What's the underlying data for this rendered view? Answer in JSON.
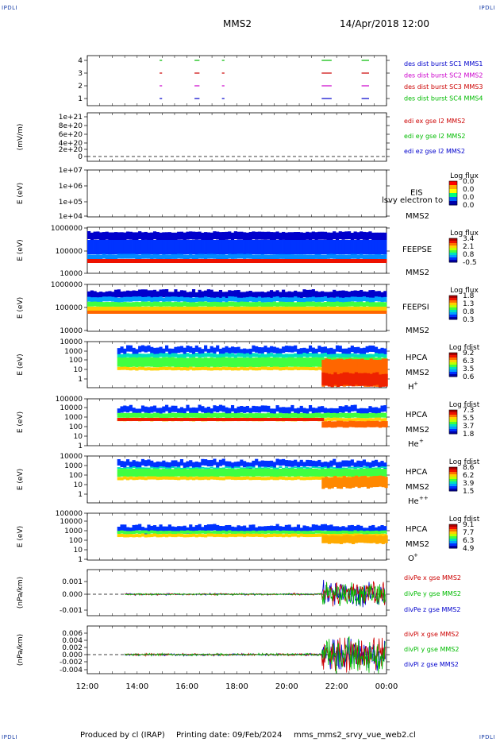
{
  "corners": {
    "tl": "IPDLI",
    "tr": "IPDLI",
    "bl": "IPDLI",
    "br": "IPDLI"
  },
  "header": {
    "spacecraft": "MMS2",
    "date": "14/Apr/2018 12:00"
  },
  "footer": {
    "produced": "Produced by cl (IRAP)",
    "printing": "Printing date: 09/Feb/2024",
    "file": "mms_mms2_srvy_vue_web2.cl"
  },
  "chart_data": {
    "type": "multi-panel",
    "xaxis": {
      "ticks": [
        "12:00",
        "14:00",
        "16:00",
        "18:00",
        "20:00",
        "22:00",
        "00:00"
      ],
      "range": [
        "12:00",
        "00:00"
      ]
    },
    "colors": {
      "red": "#cc0000",
      "green": "#00bb00",
      "blue": "#0000cc",
      "magenta": "#cc00cc"
    },
    "panels": [
      {
        "id": "burst",
        "yticks": [
          "4",
          "3",
          "2",
          "1"
        ],
        "legend": [
          {
            "text": "des dist burst SC1 MMS1",
            "color": "#0000cc"
          },
          {
            "text": "des dist burst SC2 MMS2",
            "color": "#cc00cc"
          },
          {
            "text": "des dist burst SC3 MMS3",
            "color": "#cc0000"
          },
          {
            "text": "des dist burst SC4 MMS4",
            "color": "#00bb00"
          }
        ],
        "segments": [
          [
            14.9,
            15.0
          ],
          [
            16.3,
            16.5
          ],
          [
            17.4,
            17.5
          ],
          [
            21.4,
            21.8
          ],
          [
            23.0,
            23.3
          ]
        ]
      },
      {
        "id": "edi",
        "ylabel": "(mV/m)",
        "yticks": [
          "1e+21",
          "8e+20",
          "6e+20",
          "4e+20",
          "2e+20",
          "0"
        ],
        "legend": [
          {
            "text": "edi ex gse l2 MMS2",
            "color": "#cc0000"
          },
          {
            "text": "edi ey gse l2 MMS2",
            "color": "#00bb00"
          },
          {
            "text": "edi ez gse l2 MMS2",
            "color": "#0000cc"
          }
        ]
      },
      {
        "id": "eis",
        "ylabel": "E (eV)",
        "yticks": [
          "1e+07",
          "1e+06",
          "1e+05",
          "1e+04"
        ],
        "instrument": "EIS",
        "spacecraft": "MMS2",
        "overlay": "lsvy electron to",
        "colorbar": {
          "title": "Log flux",
          "ticks": [
            "0.0",
            "0.0",
            "0.0",
            "0.0"
          ]
        }
      },
      {
        "id": "feepse",
        "ylabel": "E (eV)",
        "yticks": [
          "1000000",
          "100000",
          "10000"
        ],
        "instrument": "FEEPSE",
        "spacecraft": "MMS2",
        "colorbar": {
          "title": "Log flux",
          "ticks": [
            "3.4",
            "2.1",
            "0.8",
            "-0.5"
          ]
        }
      },
      {
        "id": "feepsi",
        "ylabel": "E (eV)",
        "yticks": [
          "1000000",
          "100000",
          "10000"
        ],
        "instrument": "FEEPSI",
        "spacecraft": "MMS2",
        "colorbar": {
          "title": "Log flux",
          "ticks": [
            "1.8",
            "1.3",
            "0.8",
            "0.3"
          ]
        }
      },
      {
        "id": "hpca_h",
        "ylabel": "E (eV)",
        "yticks": [
          "10000",
          "1000",
          "100",
          "10",
          "1"
        ],
        "instrument": "HPCA",
        "spacecraft": "MMS2",
        "species": "H",
        "charge": "+",
        "colorbar": {
          "title": "Log fdist",
          "ticks": [
            "9.2",
            "6.3",
            "3.5",
            "0.6"
          ]
        }
      },
      {
        "id": "hpca_he",
        "ylabel": "E (eV)",
        "yticks": [
          "100000",
          "10000",
          "1000",
          "100",
          "10",
          "1"
        ],
        "instrument": "HPCA",
        "spacecraft": "MMS2",
        "species": "He",
        "charge": "+",
        "colorbar": {
          "title": "Log fdist",
          "ticks": [
            "7.3",
            "5.5",
            "3.7",
            "1.8"
          ]
        }
      },
      {
        "id": "hpca_hepp",
        "ylabel": "E (eV)",
        "yticks": [
          "10000",
          "1000",
          "100",
          "10",
          "1"
        ],
        "instrument": "HPCA",
        "spacecraft": "MMS2",
        "species": "He",
        "charge": "++",
        "colorbar": {
          "title": "Log fdist",
          "ticks": [
            "8.6",
            "6.2",
            "3.9",
            "1.5"
          ]
        }
      },
      {
        "id": "hpca_o",
        "ylabel": "E (eV)",
        "yticks": [
          "100000",
          "10000",
          "1000",
          "100",
          "10",
          "1"
        ],
        "instrument": "HPCA",
        "spacecraft": "MMS2",
        "species": "O",
        "charge": "+",
        "colorbar": {
          "title": "Log fdist",
          "ticks": [
            "9.1",
            "7.7",
            "6.3",
            "4.9"
          ]
        }
      },
      {
        "id": "divpe",
        "ylabel": "(nPa/km)",
        "yticks": [
          "0.001",
          "0.000",
          "-0.001"
        ],
        "legend": [
          {
            "text": "divPe x gse MMS2",
            "color": "#cc0000"
          },
          {
            "text": "divPe y gse MMS2",
            "color": "#00bb00"
          },
          {
            "text": "divPe z gse MMS2",
            "color": "#0000cc"
          }
        ]
      },
      {
        "id": "divpi",
        "ylabel": "(nPa/km)",
        "yticks": [
          "0.006",
          "0.004",
          "0.002",
          "0.000",
          "-0.002",
          "-0.004"
        ],
        "legend": [
          {
            "text": "divPi x gse MMS2",
            "color": "#cc0000"
          },
          {
            "text": "divPi y gse MMS2",
            "color": "#00bb00"
          },
          {
            "text": "divPi z gse MMS2",
            "color": "#0000cc"
          }
        ]
      }
    ]
  }
}
